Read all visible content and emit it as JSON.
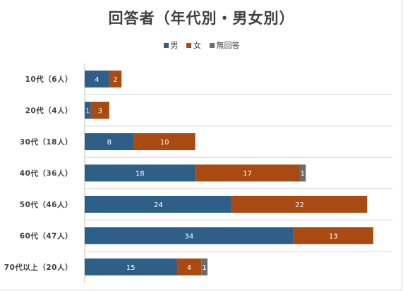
{
  "chart_data": {
    "type": "bar",
    "orientation": "horizontal",
    "stacked": true,
    "title": "回答者（年代別・男女別）",
    "categories": [
      "10代（6人）",
      "20代（4人）",
      "30代（18人）",
      "40代（36人）",
      "50代（46人）",
      "60代（47人）",
      "70代以上（20人）"
    ],
    "series": [
      {
        "name": "男",
        "color": "#2e5f87",
        "values": [
          4,
          1,
          8,
          18,
          24,
          34,
          15
        ]
      },
      {
        "name": "女",
        "color": "#a94a12",
        "values": [
          2,
          3,
          10,
          17,
          22,
          13,
          4
        ]
      },
      {
        "name": "無回答",
        "color": "#6b6b6b",
        "values": [
          0,
          0,
          0,
          1,
          0,
          0,
          1
        ]
      }
    ],
    "xlim": [
      0,
      50
    ],
    "grid": true,
    "legend_position": "top"
  }
}
